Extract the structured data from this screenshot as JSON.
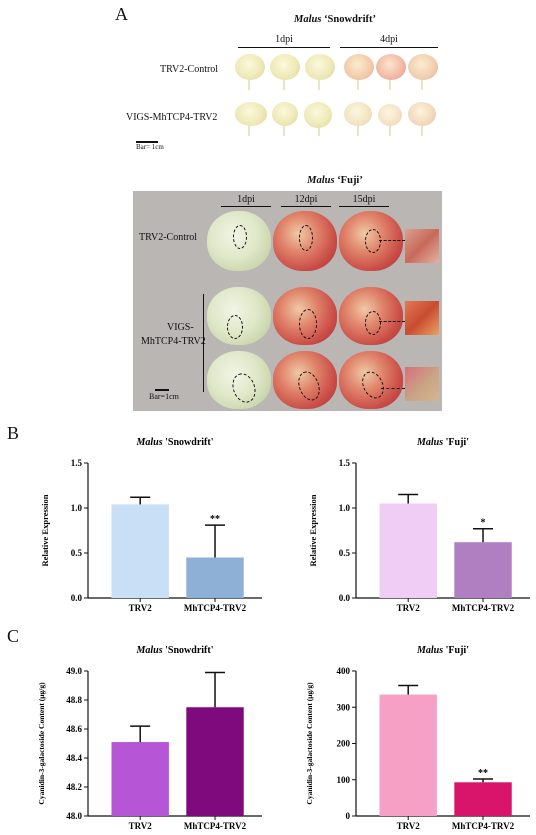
{
  "panel_a": {
    "letter": "A",
    "snowdrift": {
      "title_italic": "Malus",
      "title_rest": " ‘Snowdrift’",
      "dpi_labels": [
        "1dpi",
        "4dpi"
      ],
      "row_labels": [
        "TRV2-Control",
        "VIGS-MhTCP4-TRV2"
      ],
      "scale_bar": "Bar= 1cm"
    },
    "fuji": {
      "title_italic": "Malus",
      "title_rest": " ‘Fuji’",
      "dpi_labels": [
        "1dpi",
        "12dpi",
        "15dpi"
      ],
      "row_labels": [
        "TRV2-Control",
        "VIGS-",
        "MhTCP4-TRV2"
      ],
      "scale_bar": "Bar=1cm"
    }
  },
  "panel_b": {
    "letter": "B"
  },
  "panel_c": {
    "letter": "C"
  },
  "colors": {
    "snowdrift_trv2": "#c8dff5",
    "snowdrift_mhtcp4": "#8fb0d6",
    "fuji_trv2": "#efcdf5",
    "fuji_mhtcp4": "#b07fc2",
    "c_snowdrift_trv2": "#b655d6",
    "c_snowdrift_mhtcp4": "#7e0a7e",
    "c_fuji_trv2": "#f7a0c6",
    "c_fuji_mhtcp4": "#d9146b"
  },
  "chart_data": [
    {
      "type": "bar",
      "title_italic": "Malus",
      "title_rest": " 'Snowdrift'",
      "categories": [
        "TRV2",
        "MhTCP4-TRV2"
      ],
      "values": [
        1.04,
        0.45
      ],
      "errors": [
        0.08,
        0.36
      ],
      "significance": [
        "",
        "**"
      ],
      "ylabel": "Relative Expression",
      "ylim": [
        0,
        1.5
      ],
      "yticks": [
        "0.0",
        "0.5",
        "1.0",
        "1.5"
      ],
      "ytick_values": [
        0,
        0.5,
        1.0,
        1.5
      ]
    },
    {
      "type": "bar",
      "title_italic": "Malus",
      "title_rest": " 'Fuji'",
      "categories": [
        "TRV2",
        "MhTCP4-TRV2"
      ],
      "values": [
        1.05,
        0.62
      ],
      "errors": [
        0.1,
        0.15
      ],
      "significance": [
        "",
        "*"
      ],
      "ylabel": "Relative Expression",
      "ylim": [
        0,
        1.5
      ],
      "yticks": [
        "0.0",
        "0.5",
        "1.0",
        "1.5"
      ],
      "ytick_values": [
        0,
        0.5,
        1.0,
        1.5
      ]
    },
    {
      "type": "bar",
      "title_italic": "Malus",
      "title_rest": " 'Snowdrift'",
      "categories": [
        "TRV2",
        "MhTCP4-TRV2"
      ],
      "values": [
        48.51,
        48.75
      ],
      "errors": [
        0.11,
        0.24
      ],
      "significance": [
        "",
        ""
      ],
      "ylabel": "Cyanidin-3-galactoside Content (μg/g)",
      "ylim": [
        48.0,
        49.0
      ],
      "yticks": [
        "48.0",
        "48.2",
        "48.4",
        "48.6",
        "48.8",
        "49.0"
      ],
      "ytick_values": [
        48.0,
        48.2,
        48.4,
        48.6,
        48.8,
        49.0
      ]
    },
    {
      "type": "bar",
      "title_italic": "Malus",
      "title_rest": " 'Fuji'",
      "categories": [
        "TRV2",
        "MhTCP4-TRV2"
      ],
      "values": [
        335,
        93
      ],
      "errors": [
        25,
        9
      ],
      "significance": [
        "",
        "**"
      ],
      "ylabel": "Cyanidin-3-galactoside Content (μg/g)",
      "ylim": [
        0,
        400
      ],
      "yticks": [
        "0",
        "100",
        "200",
        "300",
        "400"
      ],
      "ytick_values": [
        0,
        100,
        200,
        300,
        400
      ]
    }
  ]
}
